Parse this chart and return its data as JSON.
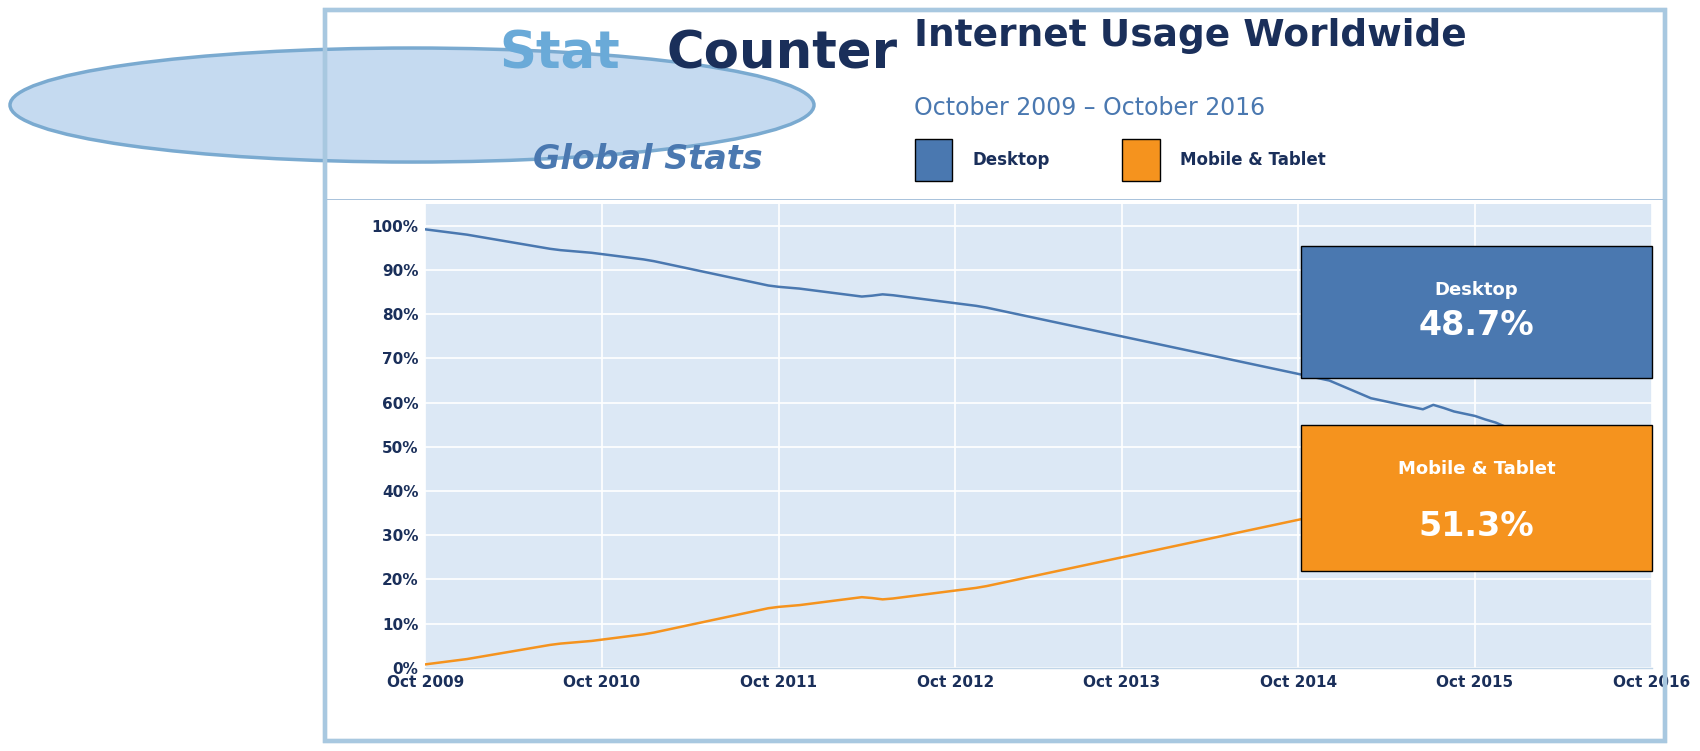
{
  "title": "Internet Usage Worldwide",
  "subtitle": "October 2009 – October 2016",
  "legend_desktop": "Desktop",
  "legend_mobile": "Mobile & Tablet",
  "desktop_color": "#4a78b0",
  "mobile_color": "#f5931e",
  "bg_color": "#dce8f5",
  "outer_bg": "#ffffff",
  "title_color": "#1a2f5a",
  "subtitle_color": "#4a78b0",
  "annotation_desktop_label": "Desktop",
  "annotation_desktop_value": "48.7%",
  "annotation_mobile_label": "Mobile & Tablet",
  "annotation_mobile_value": "51.3%",
  "x_labels": [
    "Oct 2009",
    "Oct 2010",
    "Oct 2011",
    "Oct 2012",
    "Oct 2013",
    "Oct 2014",
    "Oct 2015",
    "Oct 2016"
  ],
  "y_ticks": [
    0,
    10,
    20,
    30,
    40,
    50,
    60,
    70,
    80,
    90,
    100
  ],
  "desktop_data": [
    99.2,
    98.9,
    98.6,
    98.3,
    98.0,
    97.6,
    97.2,
    96.8,
    96.4,
    96.0,
    95.6,
    95.2,
    94.8,
    94.5,
    94.3,
    94.1,
    93.9,
    93.6,
    93.3,
    93.0,
    92.7,
    92.4,
    92.0,
    91.5,
    91.0,
    90.5,
    90.0,
    89.5,
    89.0,
    88.5,
    88.0,
    87.5,
    87.0,
    86.5,
    86.2,
    86.0,
    85.8,
    85.5,
    85.2,
    84.9,
    84.6,
    84.3,
    84.0,
    84.2,
    84.5,
    84.3,
    84.0,
    83.7,
    83.4,
    83.1,
    82.8,
    82.5,
    82.2,
    81.9,
    81.5,
    81.0,
    80.5,
    80.0,
    79.5,
    79.0,
    78.5,
    78.0,
    77.5,
    77.0,
    76.5,
    76.0,
    75.5,
    75.0,
    74.5,
    74.0,
    73.5,
    73.0,
    72.5,
    72.0,
    71.5,
    71.0,
    70.5,
    70.0,
    69.5,
    69.0,
    68.5,
    68.0,
    67.5,
    67.0,
    66.5,
    66.0,
    65.5,
    65.0,
    64.0,
    63.0,
    62.0,
    61.0,
    60.5,
    60.0,
    59.5,
    59.0,
    58.5,
    59.5,
    58.8,
    58.0,
    57.5,
    57.0,
    56.2,
    55.5,
    54.5,
    53.0,
    51.5,
    52.5,
    52.0,
    51.2,
    50.5,
    50.8,
    51.2,
    51.8,
    51.5,
    50.8,
    50.2,
    49.5,
    48.7
  ],
  "mobile_data": [
    0.8,
    1.1,
    1.4,
    1.7,
    2.0,
    2.4,
    2.8,
    3.2,
    3.6,
    4.0,
    4.4,
    4.8,
    5.2,
    5.5,
    5.7,
    5.9,
    6.1,
    6.4,
    6.7,
    7.0,
    7.3,
    7.6,
    8.0,
    8.5,
    9.0,
    9.5,
    10.0,
    10.5,
    11.0,
    11.5,
    12.0,
    12.5,
    13.0,
    13.5,
    13.8,
    14.0,
    14.2,
    14.5,
    14.8,
    15.1,
    15.4,
    15.7,
    16.0,
    15.8,
    15.5,
    15.7,
    16.0,
    16.3,
    16.6,
    16.9,
    17.2,
    17.5,
    17.8,
    18.1,
    18.5,
    19.0,
    19.5,
    20.0,
    20.5,
    21.0,
    21.5,
    22.0,
    22.5,
    23.0,
    23.5,
    24.0,
    24.5,
    25.0,
    25.5,
    26.0,
    26.5,
    27.0,
    27.5,
    28.0,
    28.5,
    29.0,
    29.5,
    30.0,
    30.5,
    31.0,
    31.5,
    32.0,
    32.5,
    33.0,
    33.5,
    34.0,
    34.5,
    35.0,
    36.0,
    37.0,
    38.0,
    39.0,
    39.5,
    40.0,
    40.5,
    41.0,
    41.5,
    40.5,
    41.2,
    42.0,
    42.5,
    43.0,
    43.8,
    44.5,
    45.5,
    47.0,
    48.5,
    47.5,
    48.0,
    48.8,
    49.5,
    49.2,
    48.8,
    48.2,
    48.5,
    49.2,
    49.8,
    50.5,
    51.3
  ]
}
